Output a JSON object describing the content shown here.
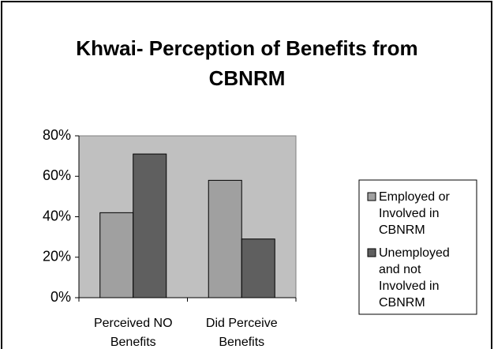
{
  "chart_data": {
    "type": "bar",
    "title": "Khwai- Perception of Benefits from CBNRM",
    "categories": [
      "Perceived NO Benefits",
      "Did Perceive Benefits"
    ],
    "series": [
      {
        "name": "Employed or Involved in CBNRM",
        "color": "#a0a0a0",
        "values": [
          42,
          58
        ]
      },
      {
        "name": "Unemployed and not Involved in CBNRM",
        "color": "#5f5f5f",
        "values": [
          71,
          29
        ]
      }
    ],
    "ylim": [
      0,
      80
    ],
    "yticks": [
      {
        "value": 0,
        "label": "0%"
      },
      {
        "value": 20,
        "label": "20%"
      },
      {
        "value": 40,
        "label": "40%"
      },
      {
        "value": 60,
        "label": "60%"
      },
      {
        "value": 80,
        "label": "80%"
      }
    ],
    "legend": "right"
  }
}
